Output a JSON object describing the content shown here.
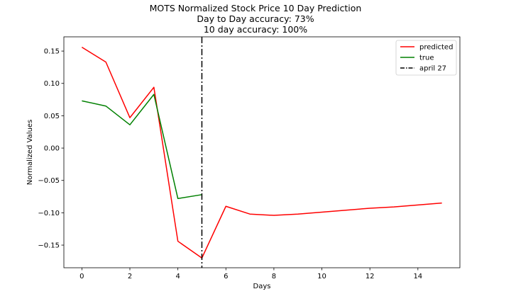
{
  "chart_data": {
    "type": "line",
    "title": "MOTS Normalized Stock Price 10 Day Prediction",
    "subtitle_lines": [
      "Day to Day accuracy: 73%",
      "10 day accuracy: 100%"
    ],
    "xlabel": "Days",
    "ylabel": "Normalized Values",
    "xlim": [
      -0.75,
      15.75
    ],
    "ylim": [
      -0.185,
      0.172
    ],
    "xticks": [
      0,
      2,
      4,
      6,
      8,
      10,
      12,
      14
    ],
    "yticks": [
      -0.15,
      -0.1,
      -0.05,
      0.0,
      0.05,
      0.1,
      0.15
    ],
    "ytick_labels": [
      "−0.15",
      "−0.10",
      "−0.05",
      "0.00",
      "0.05",
      "0.10",
      "0.15"
    ],
    "grid": false,
    "legend_position": "upper-right",
    "series": [
      {
        "name": "predicted",
        "color": "#ff0000",
        "x": [
          0,
          1,
          2,
          3,
          4,
          5,
          6,
          7,
          8,
          9,
          10,
          11,
          12,
          13,
          14,
          15
        ],
        "y": [
          0.156,
          0.133,
          0.047,
          0.094,
          -0.144,
          -0.17,
          -0.09,
          -0.102,
          -0.104,
          -0.102,
          -0.099,
          -0.096,
          -0.093,
          -0.091,
          -0.088,
          -0.085
        ]
      },
      {
        "name": "true",
        "color": "#008000",
        "x": [
          0,
          1,
          2,
          3,
          4,
          5
        ],
        "y": [
          0.073,
          0.065,
          0.036,
          0.083,
          -0.078,
          -0.072
        ]
      }
    ],
    "vline": {
      "name": "april 27",
      "x": 5,
      "color": "#000000",
      "style": "dashdot"
    }
  }
}
